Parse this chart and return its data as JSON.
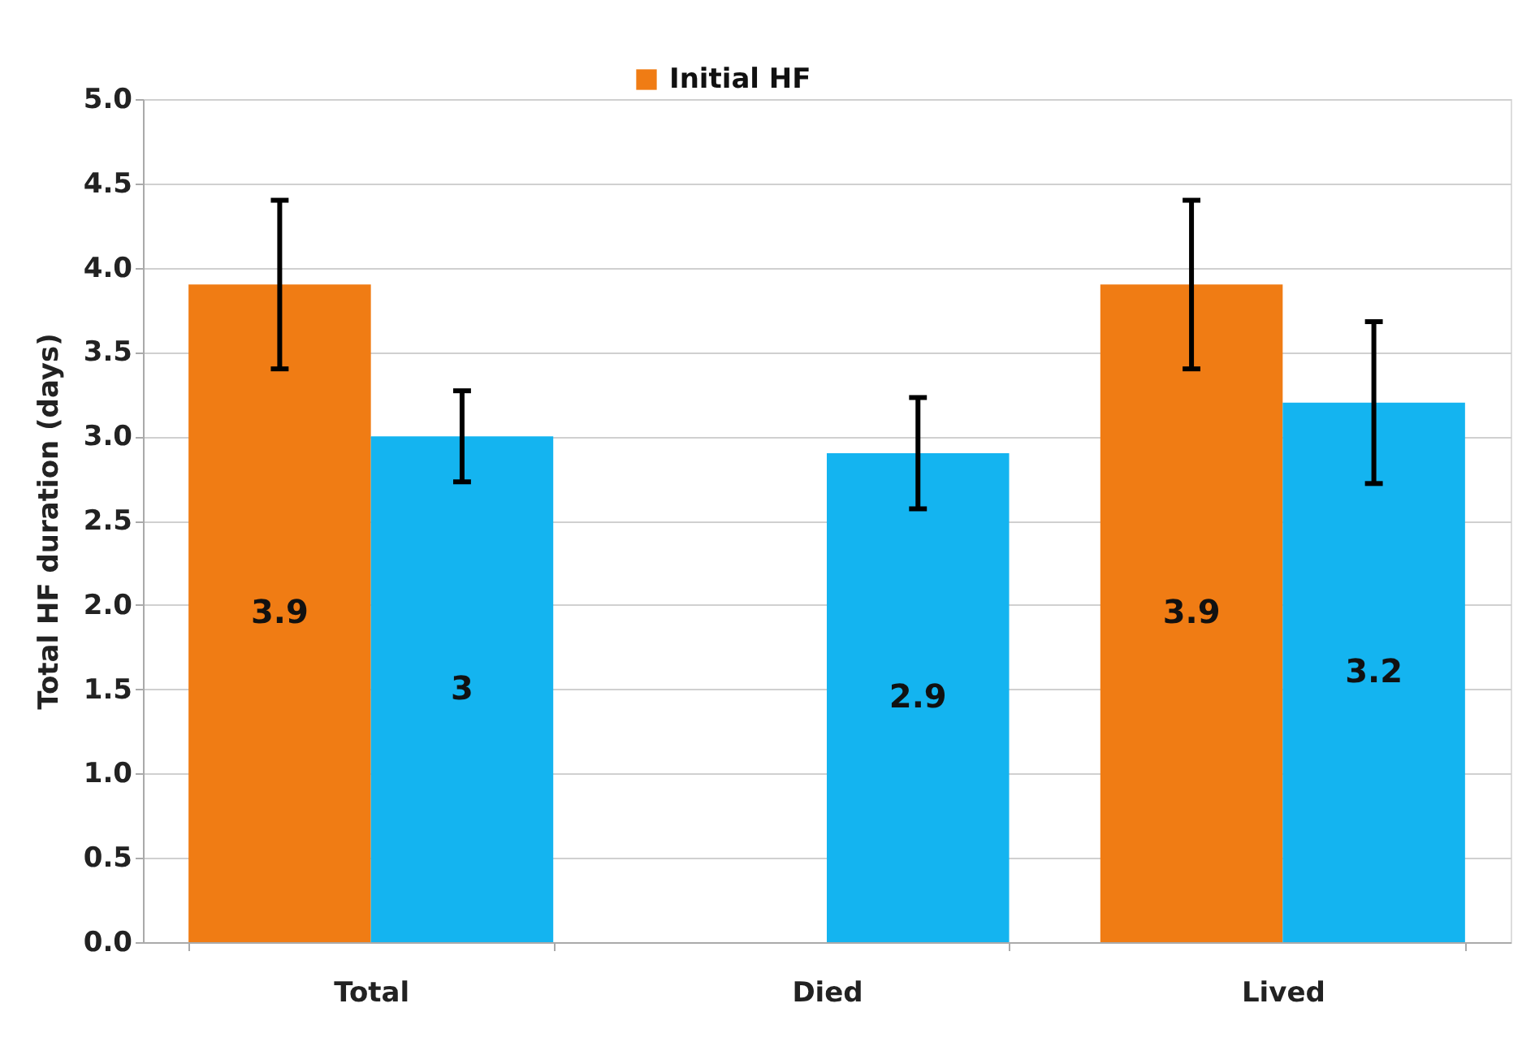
{
  "chart_data": {
    "type": "bar",
    "ylabel": "Total HF duration (days)",
    "categories": [
      "Total",
      "Died",
      "Lived"
    ],
    "series": [
      {
        "name": "Initial HF",
        "color": "#f07c14",
        "values": [
          3.9,
          null,
          3.9
        ],
        "errors": [
          0.5,
          null,
          0.5
        ]
      },
      {
        "color": "#14b4f0",
        "values": [
          3,
          2.9,
          3.2
        ],
        "errors": [
          0.27,
          0.33,
          0.48
        ]
      }
    ],
    "ylim": [
      0,
      5
    ],
    "yticks": [
      {
        "value": 0,
        "label": "0.0"
      },
      {
        "value": 0.5,
        "label": "0.5"
      },
      {
        "value": 1,
        "label": "1.0"
      },
      {
        "value": 1.5,
        "label": "1.5"
      },
      {
        "value": 2,
        "label": "2.0"
      },
      {
        "value": 2.5,
        "label": "2.5"
      },
      {
        "value": 3,
        "label": "3.0"
      },
      {
        "value": 3.5,
        "label": "3.5"
      },
      {
        "value": 4,
        "label": "4.0"
      },
      {
        "value": 4.5,
        "label": "4.5"
      },
      {
        "value": 5,
        "label": "5.0"
      }
    ],
    "grid": "y",
    "legend": "top",
    "data_labels": true
  }
}
